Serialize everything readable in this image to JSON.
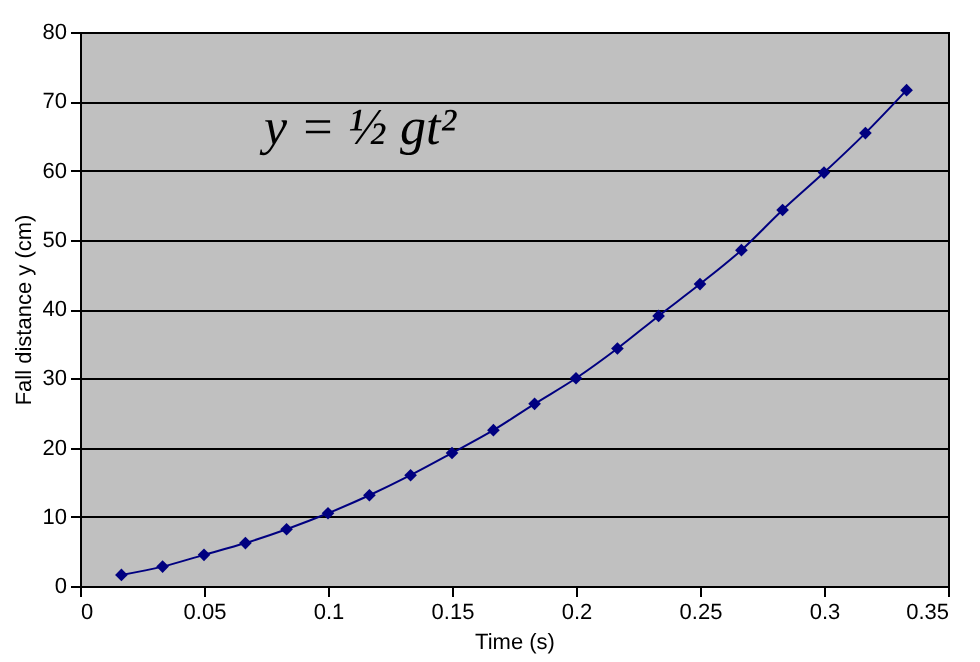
{
  "chart_data": {
    "type": "line",
    "xlabel": "Time (s)",
    "ylabel": "Fall distance  y (cm)",
    "x": [
      0.0167,
      0.0333,
      0.05,
      0.0667,
      0.0833,
      0.1,
      0.1167,
      0.1333,
      0.15,
      0.1667,
      0.1833,
      0.2,
      0.2167,
      0.2333,
      0.25,
      0.2667,
      0.2833,
      0.3,
      0.3167,
      0.3333
    ],
    "series": [
      {
        "color": "#000080",
        "values": [
          1.6,
          2.8,
          4.5,
          6.2,
          8.2,
          10.5,
          13.1,
          16,
          19.2,
          22.5,
          26.3,
          30,
          34.3,
          39,
          43.6,
          48.5,
          54.3,
          59.7,
          65.4,
          71.6
        ]
      }
    ],
    "xlim": [
      0,
      0.35
    ],
    "xticks": [
      0,
      0.05,
      0.1,
      0.15,
      0.2,
      0.25,
      0.3,
      0.35
    ],
    "ylim": [
      0,
      80
    ],
    "yticks": [
      0,
      10,
      20,
      30,
      40,
      50,
      60,
      70,
      80
    ],
    "grid": "y",
    "marker": "diamond",
    "line_style": "solid",
    "annotations": [
      "y = ½ gt²"
    ]
  }
}
